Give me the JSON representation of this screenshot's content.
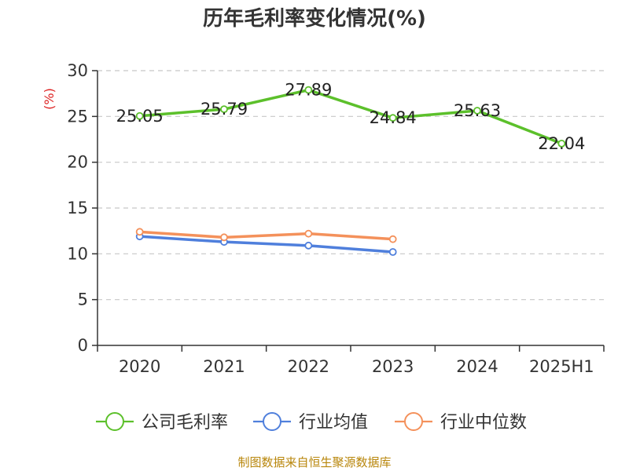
{
  "title": "历年毛利率变化情况(%)",
  "source": "制图数据来自恒生聚源数据库",
  "chart_data": {
    "type": "line",
    "title": "历年毛利率变化情况(%)",
    "ylabel": "(%)",
    "xlabel": "",
    "categories": [
      "2020",
      "2021",
      "2022",
      "2023",
      "2024",
      "2025H1"
    ],
    "ylim": [
      0,
      30
    ],
    "yticks": [
      0,
      5,
      10,
      15,
      20,
      25,
      30
    ],
    "grid": true,
    "legend_position": "bottom",
    "series": [
      {
        "name": "公司毛利率",
        "color": "#5cc02b",
        "values": [
          25.05,
          25.79,
          27.89,
          24.84,
          25.63,
          22.04
        ],
        "labels": [
          "25.05",
          "25.79",
          "27.89",
          "24.84",
          "25.63",
          "22.04"
        ]
      },
      {
        "name": "行业均值",
        "color": "#4f7fdc",
        "values": [
          11.9,
          11.3,
          10.9,
          10.2,
          null,
          null
        ]
      },
      {
        "name": "行业中位数",
        "color": "#f4915b",
        "values": [
          12.4,
          11.8,
          12.2,
          11.6,
          null,
          null
        ]
      }
    ]
  }
}
